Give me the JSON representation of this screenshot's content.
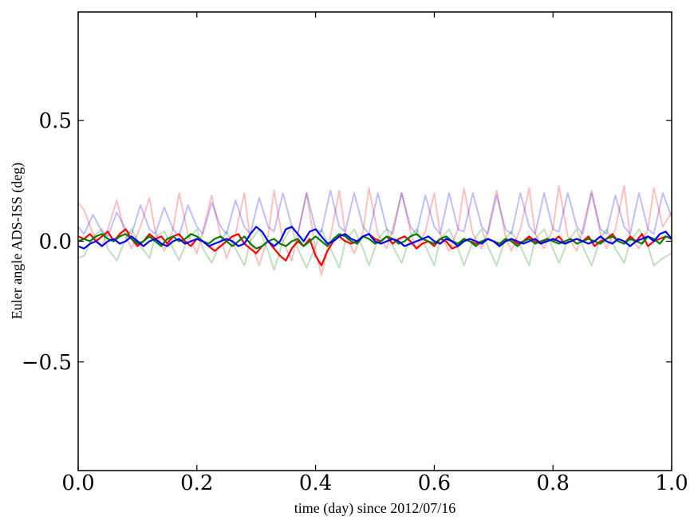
{
  "chart_data": {
    "type": "line",
    "xlabel": "time (day) since 2012/07/16",
    "ylabel": "Euler angle ADS-ISS (deg)",
    "xlim": [
      0.0,
      1.0
    ],
    "ylim": [
      -0.95,
      0.95
    ],
    "xticks": [
      0.0,
      0.2,
      0.4,
      0.6,
      0.8,
      1.0
    ],
    "xtick_labels": [
      "0.0",
      "0.2",
      "0.4",
      "0.6",
      "0.8",
      "1.0"
    ],
    "yticks": [
      -0.5,
      0.0,
      0.5
    ],
    "ytick_labels": [
      "−0.5",
      "0.0",
      "0.5"
    ],
    "grid": false,
    "series": [
      {
        "color": "#ff0000",
        "opacity": 0.25,
        "x": [
          0.0,
          0.01,
          0.025,
          0.04,
          0.05,
          0.065,
          0.08,
          0.09,
          0.105,
          0.12,
          0.13,
          0.145,
          0.16,
          0.17,
          0.185,
          0.2,
          0.21,
          0.225,
          0.24,
          0.25,
          0.265,
          0.28,
          0.29,
          0.305,
          0.32,
          0.33,
          0.345,
          0.36,
          0.37,
          0.385,
          0.4,
          0.41,
          0.425,
          0.44,
          0.45,
          0.465,
          0.48,
          0.49,
          0.505,
          0.52,
          0.53,
          0.545,
          0.56,
          0.57,
          0.585,
          0.6,
          0.61,
          0.625,
          0.64,
          0.65,
          0.665,
          0.68,
          0.69,
          0.705,
          0.72,
          0.73,
          0.745,
          0.76,
          0.77,
          0.785,
          0.8,
          0.81,
          0.825,
          0.84,
          0.85,
          0.865,
          0.88,
          0.89,
          0.905,
          0.92,
          0.93,
          0.945,
          0.96,
          0.97,
          0.985,
          1.0
        ],
        "y": [
          0.16,
          0.13,
          0.03,
          -0.02,
          0.05,
          0.17,
          0.02,
          -0.03,
          0.06,
          0.18,
          0.04,
          -0.04,
          0.05,
          0.2,
          0.03,
          -0.05,
          0.04,
          0.19,
          0.02,
          -0.07,
          0.03,
          0.2,
          0.0,
          -0.1,
          0.02,
          0.21,
          0.0,
          -0.08,
          0.03,
          0.2,
          -0.04,
          -0.14,
          0.02,
          0.21,
          0.03,
          -0.05,
          0.04,
          0.22,
          0.03,
          -0.03,
          0.05,
          0.2,
          0.04,
          -0.03,
          0.04,
          0.2,
          0.03,
          -0.04,
          0.05,
          0.22,
          0.03,
          -0.03,
          0.04,
          0.21,
          0.02,
          -0.04,
          0.05,
          0.22,
          0.03,
          -0.03,
          0.05,
          0.23,
          0.02,
          -0.04,
          0.05,
          0.21,
          0.03,
          -0.03,
          0.05,
          0.23,
          0.02,
          -0.03,
          0.05,
          0.22,
          0.06,
          0.12
        ]
      },
      {
        "color": "#008000",
        "opacity": 0.25,
        "x": [
          0.0,
          0.01,
          0.025,
          0.04,
          0.05,
          0.065,
          0.08,
          0.09,
          0.105,
          0.12,
          0.13,
          0.145,
          0.16,
          0.17,
          0.185,
          0.2,
          0.21,
          0.225,
          0.24,
          0.25,
          0.265,
          0.28,
          0.29,
          0.305,
          0.32,
          0.33,
          0.345,
          0.36,
          0.37,
          0.385,
          0.4,
          0.41,
          0.425,
          0.44,
          0.45,
          0.465,
          0.48,
          0.49,
          0.505,
          0.52,
          0.53,
          0.545,
          0.56,
          0.57,
          0.585,
          0.6,
          0.61,
          0.625,
          0.64,
          0.65,
          0.665,
          0.68,
          0.69,
          0.705,
          0.72,
          0.73,
          0.745,
          0.76,
          0.77,
          0.785,
          0.8,
          0.81,
          0.825,
          0.84,
          0.85,
          0.865,
          0.88,
          0.89,
          0.905,
          0.92,
          0.93,
          0.945,
          0.96,
          0.97,
          0.985,
          1.0
        ],
        "y": [
          -0.07,
          -0.06,
          0.02,
          0.05,
          -0.03,
          -0.08,
          0.01,
          0.05,
          -0.02,
          -0.07,
          0.02,
          0.04,
          -0.03,
          -0.08,
          0.01,
          0.05,
          -0.03,
          -0.09,
          0.0,
          0.04,
          -0.03,
          -0.1,
          0.0,
          0.05,
          -0.04,
          -0.12,
          0.0,
          0.06,
          -0.03,
          -0.11,
          -0.02,
          0.05,
          -0.03,
          -0.11,
          0.0,
          0.05,
          -0.03,
          -0.1,
          0.01,
          0.05,
          -0.02,
          -0.09,
          0.02,
          0.05,
          -0.02,
          -0.1,
          0.01,
          0.05,
          -0.03,
          -0.1,
          0.0,
          0.05,
          -0.02,
          -0.1,
          0.01,
          0.04,
          -0.02,
          -0.1,
          0.01,
          0.05,
          -0.03,
          -0.09,
          0.0,
          0.05,
          -0.02,
          -0.1,
          0.01,
          0.05,
          -0.03,
          -0.09,
          0.0,
          0.05,
          -0.02,
          -0.1,
          -0.07,
          -0.05
        ]
      },
      {
        "color": "#0000ff",
        "opacity": 0.25,
        "x": [
          0.0,
          0.01,
          0.025,
          0.04,
          0.05,
          0.065,
          0.08,
          0.09,
          0.105,
          0.12,
          0.13,
          0.145,
          0.16,
          0.17,
          0.185,
          0.2,
          0.21,
          0.225,
          0.24,
          0.25,
          0.265,
          0.28,
          0.29,
          0.305,
          0.32,
          0.33,
          0.345,
          0.36,
          0.37,
          0.385,
          0.4,
          0.41,
          0.425,
          0.44,
          0.45,
          0.465,
          0.48,
          0.49,
          0.505,
          0.52,
          0.53,
          0.545,
          0.56,
          0.57,
          0.585,
          0.6,
          0.61,
          0.625,
          0.64,
          0.65,
          0.665,
          0.68,
          0.69,
          0.705,
          0.72,
          0.73,
          0.745,
          0.76,
          0.77,
          0.785,
          0.8,
          0.81,
          0.825,
          0.84,
          0.85,
          0.865,
          0.88,
          0.89,
          0.905,
          0.92,
          0.93,
          0.945,
          0.96,
          0.97,
          0.985,
          1.0
        ],
        "y": [
          0.06,
          0.03,
          0.11,
          0.04,
          0.02,
          0.12,
          0.05,
          0.03,
          0.15,
          0.05,
          0.03,
          0.14,
          0.05,
          0.02,
          0.15,
          0.06,
          0.03,
          0.16,
          0.06,
          0.03,
          0.17,
          0.06,
          0.03,
          0.18,
          0.06,
          0.04,
          0.2,
          0.06,
          0.03,
          0.2,
          0.05,
          0.04,
          0.21,
          0.06,
          0.04,
          0.2,
          0.06,
          0.03,
          0.2,
          0.05,
          0.03,
          0.2,
          0.06,
          0.03,
          0.19,
          0.06,
          0.03,
          0.2,
          0.05,
          0.04,
          0.2,
          0.06,
          0.03,
          0.19,
          0.05,
          0.03,
          0.2,
          0.06,
          0.03,
          0.2,
          0.05,
          0.04,
          0.2,
          0.06,
          0.03,
          0.2,
          0.05,
          0.03,
          0.19,
          0.06,
          0.03,
          0.2,
          0.05,
          0.03,
          0.2,
          0.1
        ]
      },
      {
        "color": "#ff0000",
        "opacity": 1,
        "x": [
          0.0,
          0.01,
          0.02,
          0.03,
          0.04,
          0.05,
          0.06,
          0.07,
          0.08,
          0.09,
          0.1,
          0.11,
          0.12,
          0.13,
          0.14,
          0.15,
          0.16,
          0.17,
          0.18,
          0.19,
          0.2,
          0.21,
          0.22,
          0.23,
          0.24,
          0.25,
          0.26,
          0.27,
          0.28,
          0.29,
          0.3,
          0.31,
          0.32,
          0.33,
          0.34,
          0.35,
          0.36,
          0.37,
          0.38,
          0.39,
          0.4,
          0.41,
          0.42,
          0.43,
          0.44,
          0.45,
          0.46,
          0.47,
          0.48,
          0.49,
          0.5,
          0.51,
          0.52,
          0.53,
          0.54,
          0.55,
          0.56,
          0.57,
          0.58,
          0.59,
          0.6,
          0.61,
          0.62,
          0.63,
          0.64,
          0.65,
          0.66,
          0.67,
          0.68,
          0.69,
          0.7,
          0.71,
          0.72,
          0.73,
          0.74,
          0.75,
          0.76,
          0.77,
          0.78,
          0.79,
          0.8,
          0.81,
          0.82,
          0.83,
          0.84,
          0.85,
          0.86,
          0.87,
          0.88,
          0.89,
          0.9,
          0.91,
          0.92,
          0.93,
          0.94,
          0.95,
          0.96,
          0.97,
          0.98,
          0.99,
          1.0
        ],
        "y": [
          0.02,
          0.01,
          0.03,
          0.0,
          0.02,
          0.04,
          0.0,
          0.03,
          0.05,
          0.01,
          -0.02,
          0.0,
          0.03,
          0.01,
          0.02,
          -0.01,
          0.02,
          0.03,
          0.0,
          -0.02,
          0.01,
          0.0,
          -0.02,
          -0.04,
          -0.02,
          0.0,
          0.02,
          0.03,
          -0.01,
          -0.03,
          -0.05,
          -0.02,
          0.0,
          -0.03,
          -0.06,
          -0.08,
          -0.03,
          0.0,
          -0.02,
          0.01,
          -0.06,
          -0.1,
          -0.04,
          0.0,
          0.02,
          0.0,
          -0.01,
          0.0,
          0.02,
          0.03,
          0.01,
          0.0,
          0.02,
          -0.01,
          0.01,
          0.02,
          0.0,
          -0.03,
          -0.01,
          0.0,
          -0.02,
          0.01,
          0.0,
          -0.03,
          -0.02,
          0.01,
          0.0,
          -0.01,
          0.0,
          0.01,
          0.0,
          -0.02,
          0.0,
          0.01,
          -0.01,
          0.0,
          0.02,
          0.0,
          -0.01,
          0.01,
          0.0,
          0.02,
          -0.01,
          0.0,
          0.01,
          0.0,
          0.02,
          -0.02,
          0.0,
          0.01,
          0.03,
          0.0,
          -0.01,
          0.02,
          0.0,
          0.03,
          -0.02,
          0.0,
          0.01,
          0.02,
          0.01
        ]
      },
      {
        "color": "#008000",
        "opacity": 1,
        "x": [
          0.0,
          0.01,
          0.02,
          0.03,
          0.04,
          0.05,
          0.06,
          0.07,
          0.08,
          0.09,
          0.1,
          0.11,
          0.12,
          0.13,
          0.14,
          0.15,
          0.16,
          0.17,
          0.18,
          0.19,
          0.2,
          0.21,
          0.22,
          0.23,
          0.24,
          0.25,
          0.26,
          0.27,
          0.28,
          0.29,
          0.3,
          0.31,
          0.32,
          0.33,
          0.34,
          0.35,
          0.36,
          0.37,
          0.38,
          0.39,
          0.4,
          0.41,
          0.42,
          0.43,
          0.44,
          0.45,
          0.46,
          0.47,
          0.48,
          0.49,
          0.5,
          0.51,
          0.52,
          0.53,
          0.54,
          0.55,
          0.56,
          0.57,
          0.58,
          0.59,
          0.6,
          0.61,
          0.62,
          0.63,
          0.64,
          0.65,
          0.66,
          0.67,
          0.68,
          0.69,
          0.7,
          0.71,
          0.72,
          0.73,
          0.74,
          0.75,
          0.76,
          0.77,
          0.78,
          0.79,
          0.8,
          0.81,
          0.82,
          0.83,
          0.84,
          0.85,
          0.86,
          0.87,
          0.88,
          0.89,
          0.9,
          0.91,
          0.92,
          0.93,
          0.94,
          0.95,
          0.96,
          0.97,
          0.98,
          0.99,
          1.0
        ],
        "y": [
          0.0,
          0.01,
          0.0,
          0.02,
          0.03,
          0.01,
          0.0,
          0.02,
          0.03,
          0.01,
          -0.01,
          0.0,
          0.02,
          0.0,
          -0.02,
          0.01,
          0.02,
          0.0,
          0.01,
          0.03,
          0.02,
          0.0,
          -0.01,
          0.01,
          0.02,
          0.0,
          -0.02,
          0.0,
          0.02,
          -0.01,
          -0.03,
          -0.02,
          0.0,
          0.01,
          -0.01,
          -0.02,
          0.0,
          0.01,
          -0.02,
          0.0,
          0.02,
          0.0,
          -0.02,
          0.01,
          0.03,
          0.02,
          0.0,
          -0.01,
          0.02,
          0.01,
          -0.01,
          0.0,
          0.02,
          0.01,
          -0.01,
          0.0,
          0.02,
          0.03,
          0.01,
          0.0,
          -0.01,
          0.01,
          0.02,
          0.0,
          -0.01,
          0.01,
          0.0,
          -0.02,
          0.0,
          0.01,
          0.0,
          -0.01,
          0.01,
          0.0,
          -0.02,
          0.0,
          0.01,
          -0.01,
          0.0,
          0.01,
          0.0,
          -0.01,
          0.0,
          0.01,
          -0.01,
          0.0,
          0.01,
          0.0,
          -0.01,
          0.01,
          0.02,
          0.0,
          -0.01,
          0.01,
          0.0,
          -0.01,
          0.02,
          0.01,
          -0.01,
          0.02,
          0.01
        ]
      },
      {
        "color": "#0000ff",
        "opacity": 1,
        "x": [
          0.0,
          0.01,
          0.02,
          0.03,
          0.04,
          0.05,
          0.06,
          0.07,
          0.08,
          0.09,
          0.1,
          0.11,
          0.12,
          0.13,
          0.14,
          0.15,
          0.16,
          0.17,
          0.18,
          0.19,
          0.2,
          0.21,
          0.22,
          0.23,
          0.24,
          0.25,
          0.26,
          0.27,
          0.28,
          0.29,
          0.3,
          0.31,
          0.32,
          0.33,
          0.34,
          0.35,
          0.36,
          0.37,
          0.38,
          0.39,
          0.4,
          0.41,
          0.42,
          0.43,
          0.44,
          0.45,
          0.46,
          0.47,
          0.48,
          0.49,
          0.5,
          0.51,
          0.52,
          0.53,
          0.54,
          0.55,
          0.56,
          0.57,
          0.58,
          0.59,
          0.6,
          0.61,
          0.62,
          0.63,
          0.64,
          0.65,
          0.66,
          0.67,
          0.68,
          0.69,
          0.7,
          0.71,
          0.72,
          0.73,
          0.74,
          0.75,
          0.76,
          0.77,
          0.78,
          0.79,
          0.8,
          0.81,
          0.82,
          0.83,
          0.84,
          0.85,
          0.86,
          0.87,
          0.88,
          0.89,
          0.9,
          0.91,
          0.92,
          0.93,
          0.94,
          0.95,
          0.96,
          0.97,
          0.98,
          0.99,
          1.0
        ],
        "y": [
          -0.02,
          -0.03,
          -0.01,
          0.0,
          -0.02,
          0.0,
          0.01,
          -0.01,
          0.0,
          0.02,
          0.0,
          -0.02,
          0.0,
          0.01,
          -0.01,
          -0.02,
          0.0,
          0.01,
          -0.01,
          0.0,
          0.01,
          0.0,
          -0.02,
          -0.01,
          0.0,
          0.01,
          0.0,
          -0.02,
          -0.01,
          0.03,
          0.06,
          0.04,
          0.0,
          -0.02,
          0.0,
          0.05,
          0.06,
          0.03,
          0.0,
          0.04,
          0.05,
          0.02,
          -0.01,
          0.0,
          0.02,
          0.03,
          0.01,
          0.0,
          0.02,
          0.03,
          0.0,
          -0.01,
          0.0,
          0.01,
          0.0,
          -0.02,
          -0.01,
          0.0,
          0.01,
          0.02,
          0.0,
          -0.01,
          0.01,
          0.0,
          -0.02,
          0.0,
          0.01,
          0.0,
          -0.01,
          0.01,
          0.0,
          -0.02,
          0.0,
          0.01,
          0.0,
          -0.01,
          0.0,
          0.01,
          -0.01,
          0.0,
          0.01,
          0.0,
          -0.01,
          0.0,
          0.01,
          0.0,
          -0.01,
          0.0,
          0.02,
          0.0,
          -0.01,
          0.01,
          0.0,
          -0.02,
          0.0,
          0.01,
          0.02,
          0.0,
          0.03,
          0.04,
          0.01
        ]
      }
    ]
  }
}
